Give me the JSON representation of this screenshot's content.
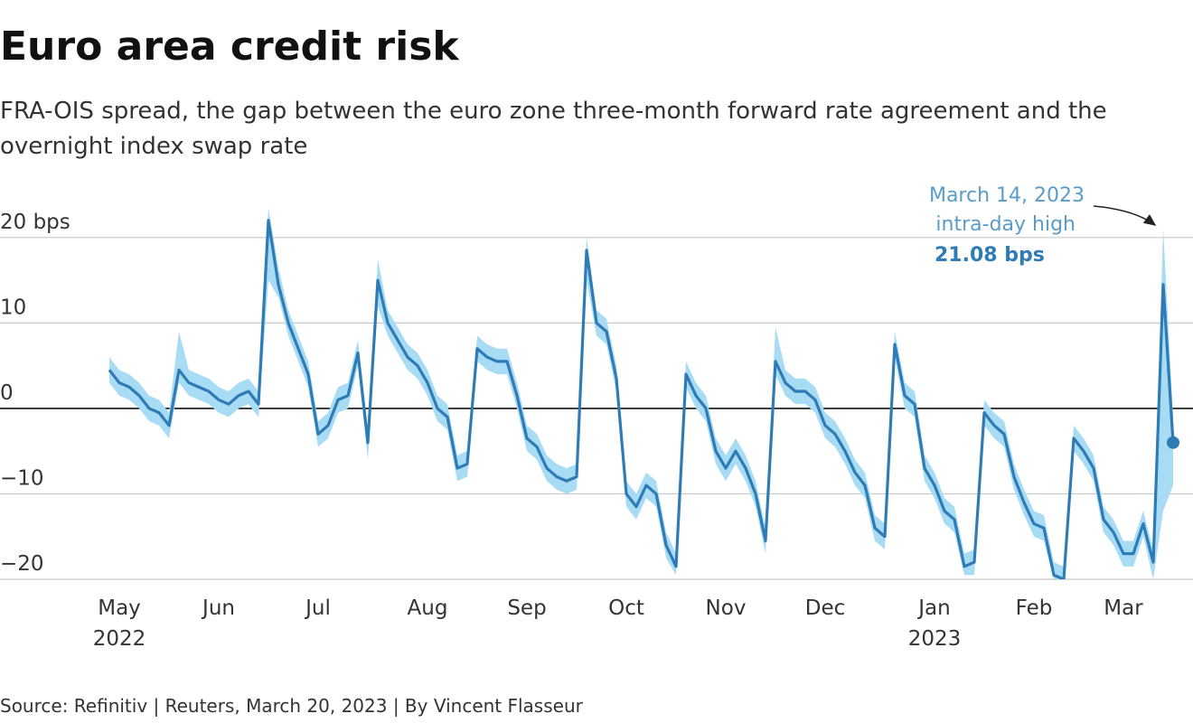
{
  "chart_data": {
    "type": "line",
    "title": "Euro area credit risk",
    "subtitle_lines": [
      "FRA-OIS spread, the gap between the euro zone three-month forward rate agreement and the",
      "overnight index swap rate"
    ],
    "source": "Source: Refinitiv | Reuters, March 20, 2023 | By Vincent Flasseur",
    "categories": [
      null,
      "May",
      null,
      null,
      null,
      null,
      null,
      null,
      null,
      null,
      null,
      "Jun",
      null,
      null,
      null,
      null,
      null,
      null,
      null,
      null,
      null,
      "Jul",
      null,
      null,
      null,
      null,
      null,
      null,
      null,
      null,
      null,
      null,
      "Aug",
      null,
      null,
      null,
      null,
      null,
      null,
      null,
      null,
      null,
      "Sep",
      null,
      null,
      null,
      null,
      null,
      null,
      null,
      null,
      null,
      "Oct",
      null,
      null,
      null,
      null,
      null,
      null,
      null,
      null,
      null,
      "Nov",
      null,
      null,
      null,
      null,
      null,
      null,
      null,
      null,
      null,
      "Dec",
      null,
      null,
      null,
      null,
      null,
      null,
      null,
      null,
      null,
      null,
      "Jan",
      null,
      null,
      null,
      null,
      null,
      null,
      null,
      null,
      null,
      "Feb",
      null,
      null,
      null,
      null,
      null,
      null,
      null,
      null,
      "Mar",
      null,
      null,
      null,
      null,
      null
    ],
    "year_labels": [
      {
        "label": "2022",
        "category": "May"
      },
      {
        "label": "2023",
        "category": "Jan"
      }
    ],
    "series": [
      {
        "color": "#2f7bb5",
        "band_color": "#a8dcf5",
        "values": [
          4.5,
          3,
          2.5,
          1.5,
          0,
          -0.5,
          -2,
          4.5,
          3,
          2.5,
          2,
          1,
          0.5,
          1.5,
          2,
          0.5,
          22,
          14.5,
          10,
          7,
          4,
          -3,
          -2,
          1,
          1.5,
          6.5,
          -4,
          15,
          10,
          8,
          6,
          5,
          3,
          0,
          -1,
          -7,
          -6.5,
          7,
          6,
          5.5,
          5.5,
          1.5,
          -3.5,
          -4.5,
          -7,
          -8,
          -8.5,
          -8,
          18.5,
          10,
          9,
          3.5,
          -10,
          -11.5,
          -9,
          -10,
          -16,
          -18.5,
          4,
          1.5,
          0,
          -5,
          -7,
          -5,
          -7,
          -10,
          -15.5,
          5.5,
          3,
          2,
          2,
          1,
          -2,
          -3,
          -5,
          -7.5,
          -9,
          -14,
          -15,
          7.5,
          1.5,
          0.5,
          -7,
          -9,
          -12,
          -13,
          -18.5,
          -18,
          -0.5,
          -2,
          -3,
          -8,
          -11,
          -13.5,
          -14,
          -19.5,
          -20,
          -3.5,
          -5,
          -7,
          -13,
          -14.5,
          -17,
          -17,
          -13.5,
          -18,
          14.5,
          -4
        ],
        "high": [
          6,
          4.5,
          4,
          3,
          1.5,
          1,
          -0.5,
          9,
          4.5,
          4,
          3.5,
          2.5,
          2,
          3,
          3.5,
          2,
          23.5,
          16.5,
          11.5,
          8.5,
          5.5,
          -1.5,
          -0.5,
          2.5,
          3,
          8,
          -2.5,
          17.5,
          11.5,
          9.5,
          7.5,
          6.5,
          4.5,
          1.5,
          0.5,
          -5.5,
          -5,
          8.5,
          7.5,
          7,
          7,
          3,
          -2,
          -3,
          -5.5,
          -6.5,
          -7,
          -6.5,
          20,
          11.5,
          10.5,
          5,
          -8.5,
          -10,
          -7.5,
          -8.5,
          -14.5,
          -17,
          5.5,
          3,
          1.5,
          -3.5,
          -5.5,
          -3.5,
          -5.5,
          -8.5,
          -14,
          9.5,
          4.5,
          3.5,
          3.5,
          2.5,
          -0.5,
          -1.5,
          -3.5,
          -6,
          -7.5,
          -12.5,
          -13.5,
          9,
          3,
          2,
          -5.5,
          -7.5,
          -10.5,
          -11.5,
          -17,
          -16.5,
          1,
          -0.5,
          -1.5,
          -6.5,
          -9.5,
          -12,
          -12.5,
          -18,
          -18.5,
          -2,
          -3.5,
          -5.5,
          -11.5,
          -13,
          -15.5,
          -15.5,
          -12,
          -16.5,
          21.08,
          -1
        ],
        "low": [
          3,
          1.5,
          1,
          0,
          -1.5,
          -2,
          -3.5,
          3,
          1.5,
          1,
          0.5,
          -0.5,
          -1,
          0,
          0.5,
          -1,
          15,
          13,
          8.5,
          5.5,
          2.5,
          -4.5,
          -3.5,
          -0.5,
          0,
          5,
          -6,
          12,
          8.5,
          6.5,
          4.5,
          3.5,
          1.5,
          -1.5,
          -2.5,
          -8.5,
          -8,
          5.5,
          4.5,
          4,
          4,
          0,
          -5,
          -6,
          -8.5,
          -9.5,
          -10,
          -9.5,
          15,
          8.5,
          7.5,
          2,
          -11.5,
          -13,
          -10.5,
          -11.5,
          -17.5,
          -19.5,
          2.5,
          0,
          -1.5,
          -6.5,
          -8.5,
          -6.5,
          -8.5,
          -11.5,
          -17,
          4,
          1.5,
          0.5,
          0.5,
          -0.5,
          -3.5,
          -4.5,
          -6.5,
          -9,
          -10.5,
          -15.5,
          -16.5,
          6,
          0,
          -1,
          -8.5,
          -10.5,
          -13.5,
          -14.5,
          -19.5,
          -19.5,
          -2,
          -3.5,
          -4.5,
          -9.5,
          -12.5,
          -15,
          -15.5,
          -20,
          -20,
          -5,
          -6.5,
          -8.5,
          -14.5,
          -16,
          -18.5,
          -18.5,
          -15,
          -20,
          -12,
          -9
        ]
      }
    ],
    "annotation": {
      "lines": [
        "March 14, 2023",
        "intra-day high"
      ],
      "value_label": "21.08 bps"
    },
    "ylim": [
      -20,
      24
    ],
    "yticks": [
      {
        "value": 20,
        "label": "20 bps"
      },
      10,
      0,
      {
        "value": -10,
        "label": "−10"
      },
      {
        "value": -20,
        "label": "−20"
      }
    ],
    "grid": true,
    "zero_line": true
  }
}
